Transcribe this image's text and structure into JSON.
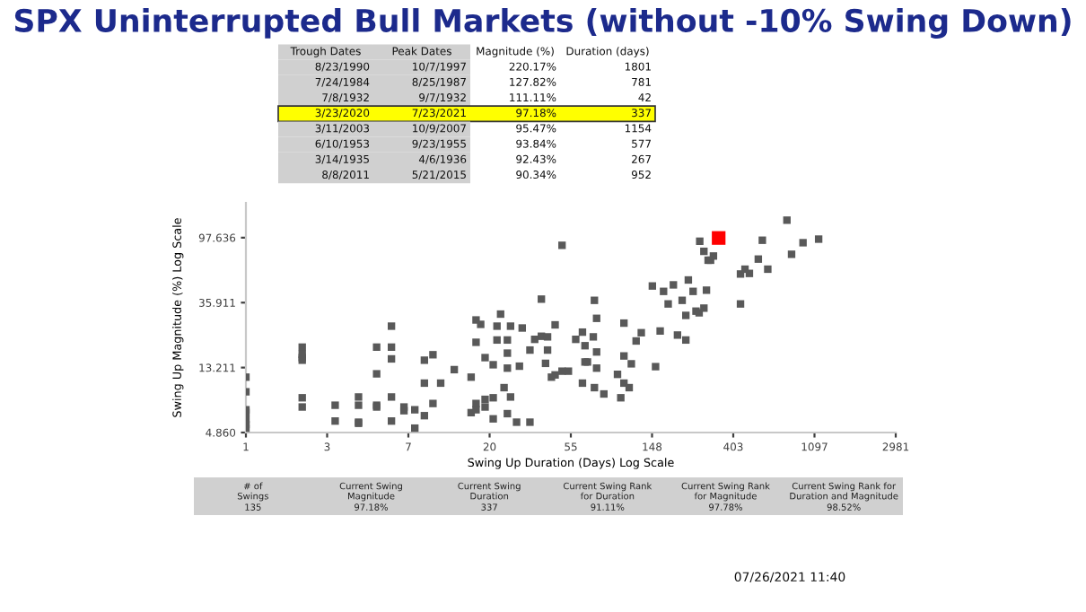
{
  "chart_data": {
    "type": "scatter",
    "title": "SPX Uninterrupted Bull Markets (without -10% Swing Down)",
    "xlabel": "Swing Up Duration (Days) Log Scale",
    "ylabel": "Swing Up Magnitude (%) Log Scale",
    "log": "xy",
    "xlim": [
      1,
      2981
    ],
    "ylim": [
      4.86,
      167
    ],
    "xticks": [
      1,
      {
        "value": 2.718,
        "label": "3"
      },
      {
        "value": 7.389,
        "label": "7"
      },
      {
        "value": 20.09,
        "label": "20"
      },
      {
        "value": 54.6,
        "label": "55"
      },
      {
        "value": 148.4,
        "label": "148"
      },
      {
        "value": 403.4,
        "label": "403"
      },
      {
        "value": 1096.6,
        "label": "1097"
      },
      2981
    ],
    "yticks": [
      {
        "value": 4.86,
        "label": "4.860"
      },
      13.211,
      35.911,
      97.636
    ],
    "grid": false,
    "legend": false,
    "marker": "square",
    "series": [
      {
        "color": "#595959",
        "x": [
          1,
          1,
          1,
          1,
          1,
          1,
          1,
          2,
          2,
          2,
          2,
          2,
          2,
          3,
          3,
          4,
          4,
          4,
          4,
          5,
          5,
          5,
          5,
          6,
          6,
          6,
          6,
          6,
          7,
          7,
          8,
          8,
          9,
          9,
          9,
          10,
          10,
          11,
          13,
          16,
          16,
          17,
          17,
          17,
          17,
          18,
          19,
          19,
          19,
          21,
          21,
          21,
          22,
          22,
          23,
          24,
          25,
          25,
          25,
          25,
          26,
          26,
          28,
          29,
          30,
          33,
          33,
          35,
          38,
          38,
          40,
          41,
          41,
          43,
          45,
          45,
          49,
          49,
          53,
          58,
          63,
          63,
          65,
          65,
          67,
          72,
          73,
          73,
          75,
          75,
          75,
          82,
          97,
          101,
          105,
          105,
          105,
          112,
          115,
          122,
          130,
          149,
          155,
          164,
          171,
          181,
          193,
          203,
          215,
          225,
          225,
          232,
          246,
          255,
          265,
          267,
          281,
          281,
          290,
          296,
          305,
          316,
          441,
          441,
          466,
          492,
          549,
          577,
          617,
          781,
          827,
          952,
          1154
        ],
        "values": [
          11.4,
          9.1,
          6.9,
          6.6,
          5.9,
          5.5,
          5.2,
          18.1,
          16.2,
          15.4,
          14.8,
          8.3,
          7.2,
          7.4,
          5.8,
          8.4,
          7.4,
          5.7,
          5.6,
          18.1,
          12.0,
          7.4,
          7.2,
          25.0,
          18.1,
          15.1,
          8.4,
          5.8,
          7.2,
          6.8,
          6.9,
          5.2,
          14.8,
          10.4,
          6.3,
          16.1,
          7.6,
          10.4,
          12.8,
          11.4,
          6.6,
          27.5,
          19.5,
          7.6,
          6.9,
          25.7,
          15.4,
          8.1,
          7.2,
          13.8,
          8.3,
          6.0,
          25.0,
          20.2,
          30.1,
          9.7,
          20.2,
          16.5,
          13.1,
          6.5,
          25.0,
          8.4,
          5.7,
          13.5,
          24.3,
          17.3,
          5.7,
          20.4,
          37.9,
          21.4,
          14.1,
          17.3,
          21.2,
          11.4,
          25.5,
          11.8,
          86.8,
          12.5,
          12.5,
          20.4,
          22.8,
          10.4,
          18.5,
          14.4,
          14.4,
          21.2,
          37.2,
          9.7,
          28.2,
          16.8,
          13.1,
          8.8,
          11.9,
          8.3,
          26.2,
          15.8,
          10.4,
          9.7,
          14.0,
          19.9,
          22.6,
          46.4,
          13.4,
          23.2,
          42.7,
          35.2,
          47.2,
          21.8,
          37.2,
          29.5,
          20.2,
          50.9,
          42.7,
          31.5,
          30.7,
          92.43,
          79.1,
          33.0,
          43.5,
          69.0,
          69.0,
          73.6,
          55.8,
          35.2,
          60.1,
          56.3,
          70.2,
          93.84,
          60.1,
          127.82,
          75.6,
          90.34,
          95.47
        ]
      },
      {
        "color": "#ff0000",
        "x": [
          337
        ],
        "values": [
          97.18
        ]
      }
    ],
    "annotations": [
      "Trough Dates",
      "Peak Dates",
      "Magnitude (%)",
      "Duration (days)",
      "8/23/1990",
      "10/7/1997",
      "220.17%",
      "1801",
      "7/24/1984",
      "8/25/1987",
      "127.82%",
      "781",
      "7/8/1932",
      "9/7/1932",
      "111.11%",
      "42",
      "3/23/2020",
      "7/23/2021",
      "97.18%",
      "337",
      "3/11/2003",
      "10/9/2007",
      "95.47%",
      "1154",
      "6/10/1953",
      "9/23/1955",
      "93.84%",
      "577",
      "3/14/1935",
      "4/6/1936",
      "92.43%",
      "267",
      "8/8/2011",
      "5/21/2015",
      "90.34%",
      "952",
      "# of\nSwings",
      "Current Swing\nMagnitude",
      "Current Swing\nDuration",
      "Current Swing Rank\nfor Duration",
      "Current Swing Rank\nfor Magnitude",
      "Current Swing Rank for\nDuration and Magnitude",
      "135",
      "97.18%",
      "337",
      "91.11%",
      "97.78%",
      "98.52%",
      "07/26/2021 11:40"
    ]
  }
}
